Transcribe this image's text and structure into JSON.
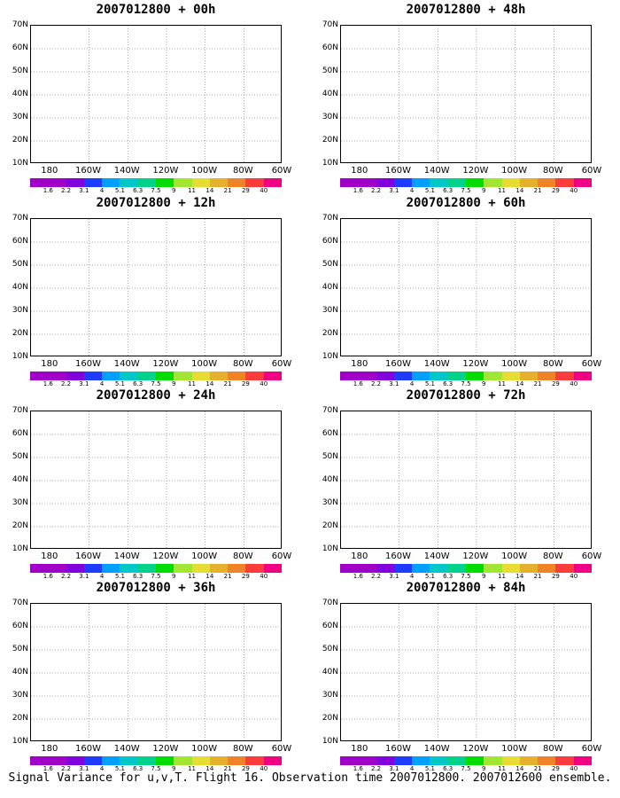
{
  "panels": [
    {
      "title": "2007012800 + 00h"
    },
    {
      "title": "2007012800 + 48h"
    },
    {
      "title": "2007012800 + 12h"
    },
    {
      "title": "2007012800 + 60h"
    },
    {
      "title": "2007012800 + 24h"
    },
    {
      "title": "2007012800 + 72h"
    },
    {
      "title": "2007012800 + 36h"
    },
    {
      "title": "2007012800 + 84h"
    }
  ],
  "lat_labels": [
    "70N",
    "60N",
    "50N",
    "40N",
    "30N",
    "20N",
    "10N"
  ],
  "lon_labels": [
    "180",
    "160W",
    "140W",
    "120W",
    "100W",
    "80W",
    "60W"
  ],
  "colorbar": {
    "labels": [
      "1.6",
      "2.2",
      "3.1",
      "4",
      "5.1",
      "6.3",
      "7.5",
      "9",
      "11",
      "14",
      "21",
      "29",
      "40"
    ],
    "colors": [
      "#a000c8",
      "#8200dc",
      "#1e3cff",
      "#00a0ff",
      "#00c8c8",
      "#00d28c",
      "#00dc00",
      "#a0e632",
      "#e6dc32",
      "#e6af2d",
      "#f08228",
      "#fa3c3c",
      "#f00082"
    ]
  },
  "footer": "Signal Variance for u,v,T. Flight 16. Observation time 2007012800. 2007012600 ensemble."
}
